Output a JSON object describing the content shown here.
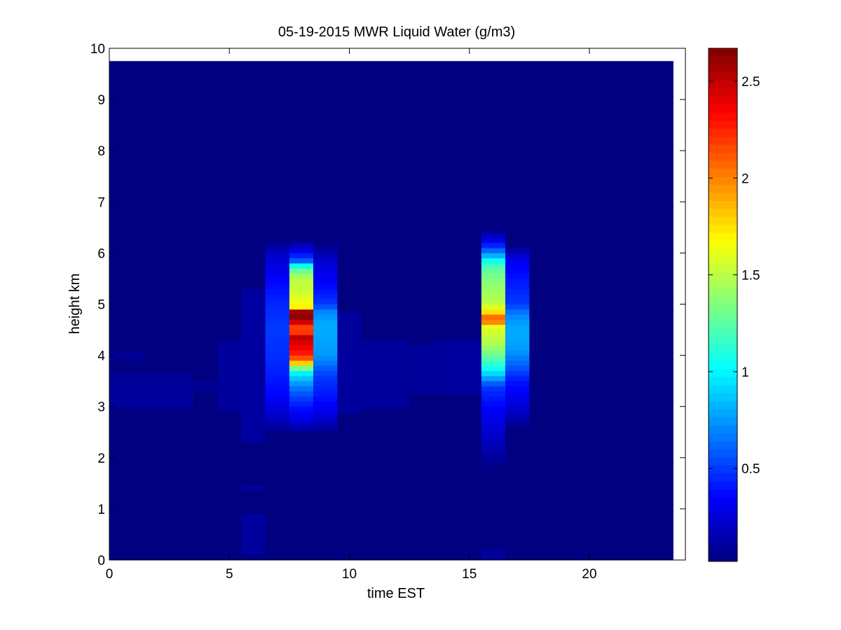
{
  "chart_data": {
    "type": "heatmap",
    "title": "05-19-2015 MWR Liquid Water (g/m3)",
    "xlabel": "time EST",
    "ylabel": "height km",
    "xlim": [
      0,
      24
    ],
    "ylim": [
      0,
      10
    ],
    "x_ticks": [
      "0",
      "5",
      "10",
      "15",
      "20"
    ],
    "y_ticks": [
      "0",
      "1",
      "2",
      "3",
      "4",
      "5",
      "6",
      "7",
      "8",
      "9",
      "10"
    ],
    "colorbar": {
      "colormap": "jet",
      "range": [
        0.02,
        2.67
      ],
      "ticks": [
        "0.5",
        "1",
        "1.5",
        "2",
        "2.5"
      ]
    },
    "data_extent": {
      "time_max": 23.5,
      "height_max": 9.75
    },
    "background_value": 0.0,
    "patches": [
      {
        "t0": 0.0,
        "t1": 1.5,
        "h0": 3.9,
        "h1": 4.05,
        "value": 0.08
      },
      {
        "t0": 0.0,
        "t1": 3.5,
        "h0": 2.95,
        "h1": 3.65,
        "value": 0.09
      },
      {
        "t0": 3.5,
        "t1": 4.5,
        "h0": 3.3,
        "h1": 3.5,
        "value": 0.07
      },
      {
        "t0": 4.5,
        "t1": 5.5,
        "h0": 2.9,
        "h1": 4.3,
        "value": 0.09
      },
      {
        "t0": 5.5,
        "t1": 6.5,
        "h0": 2.3,
        "h1": 5.3,
        "value": 0.11
      },
      {
        "t0": 5.5,
        "t1": 6.5,
        "h0": 0.1,
        "h1": 0.9,
        "value": 0.1
      },
      {
        "t0": 5.5,
        "t1": 6.5,
        "h0": 1.35,
        "h1": 1.45,
        "value": 0.09
      },
      {
        "t0": 6.5,
        "t1": 7.5,
        "h0": 3.0,
        "h1": 4.4,
        "value": 0.12
      },
      {
        "t0": 9.5,
        "t1": 10.5,
        "h0": 2.85,
        "h1": 4.85,
        "value": 0.1
      },
      {
        "t0": 10.5,
        "t1": 12.5,
        "h0": 2.95,
        "h1": 4.3,
        "value": 0.09
      },
      {
        "t0": 12.5,
        "t1": 13.5,
        "h0": 3.25,
        "h1": 4.2,
        "value": 0.09
      },
      {
        "t0": 13.5,
        "t1": 15.5,
        "h0": 3.25,
        "h1": 4.3,
        "value": 0.1
      },
      {
        "t0": 15.5,
        "t1": 16.5,
        "h0": 0.0,
        "h1": 0.2,
        "value": 0.09
      }
    ],
    "columns": [
      {
        "t0": 6.5,
        "t1": 7.5,
        "profile": [
          [
            2.5,
            0.05
          ],
          [
            2.8,
            0.2
          ],
          [
            3.2,
            0.35
          ],
          [
            3.8,
            0.45
          ],
          [
            4.5,
            0.5
          ],
          [
            5.0,
            0.45
          ],
          [
            5.5,
            0.35
          ],
          [
            6.0,
            0.2
          ],
          [
            6.2,
            0.05
          ]
        ]
      },
      {
        "t0": 7.5,
        "t1": 8.5,
        "profile": [
          [
            2.5,
            0.05
          ],
          [
            2.7,
            0.25
          ],
          [
            3.0,
            0.4
          ],
          [
            3.3,
            0.6
          ],
          [
            3.5,
            0.8
          ],
          [
            3.7,
            1.05
          ],
          [
            3.8,
            1.6
          ],
          [
            3.9,
            2.0
          ],
          [
            4.0,
            2.25
          ],
          [
            4.2,
            2.4
          ],
          [
            4.35,
            2.5
          ],
          [
            4.4,
            2.35
          ],
          [
            4.5,
            2.05
          ],
          [
            4.6,
            2.3
          ],
          [
            4.7,
            2.6
          ],
          [
            4.8,
            2.67
          ],
          [
            4.9,
            2.5
          ],
          [
            4.95,
            1.7
          ],
          [
            5.2,
            1.55
          ],
          [
            5.5,
            1.5
          ],
          [
            5.65,
            1.3
          ],
          [
            5.75,
            1.05
          ],
          [
            5.85,
            0.6
          ],
          [
            6.0,
            0.35
          ],
          [
            6.25,
            0.05
          ]
        ]
      },
      {
        "t0": 8.5,
        "t1": 9.5,
        "profile": [
          [
            2.5,
            0.05
          ],
          [
            2.8,
            0.25
          ],
          [
            3.2,
            0.4
          ],
          [
            3.6,
            0.5
          ],
          [
            4.0,
            0.75
          ],
          [
            4.3,
            0.78
          ],
          [
            4.6,
            0.8
          ],
          [
            4.85,
            0.7
          ],
          [
            5.0,
            0.5
          ],
          [
            5.4,
            0.35
          ],
          [
            5.8,
            0.25
          ],
          [
            6.0,
            0.15
          ],
          [
            6.15,
            0.05
          ]
        ]
      },
      {
        "t0": 15.5,
        "t1": 16.5,
        "profile": [
          [
            1.85,
            0.05
          ],
          [
            2.2,
            0.15
          ],
          [
            2.6,
            0.25
          ],
          [
            3.0,
            0.35
          ],
          [
            3.4,
            0.5
          ],
          [
            3.6,
            0.85
          ],
          [
            3.75,
            1.05
          ],
          [
            3.9,
            1.2
          ],
          [
            4.2,
            1.45
          ],
          [
            4.55,
            1.6
          ],
          [
            4.6,
            1.95
          ],
          [
            4.75,
            2.05
          ],
          [
            4.85,
            1.75
          ],
          [
            5.0,
            1.5
          ],
          [
            5.5,
            1.35
          ],
          [
            5.7,
            1.25
          ],
          [
            5.85,
            1.05
          ],
          [
            6.0,
            0.7
          ],
          [
            6.2,
            0.35
          ],
          [
            6.45,
            0.05
          ]
        ]
      },
      {
        "t0": 16.5,
        "t1": 17.5,
        "profile": [
          [
            2.6,
            0.05
          ],
          [
            3.0,
            0.25
          ],
          [
            3.5,
            0.4
          ],
          [
            3.8,
            0.6
          ],
          [
            4.1,
            0.75
          ],
          [
            4.5,
            0.8
          ],
          [
            4.8,
            0.7
          ],
          [
            5.0,
            0.5
          ],
          [
            5.5,
            0.4
          ],
          [
            5.9,
            0.3
          ],
          [
            6.1,
            0.05
          ]
        ]
      }
    ]
  }
}
